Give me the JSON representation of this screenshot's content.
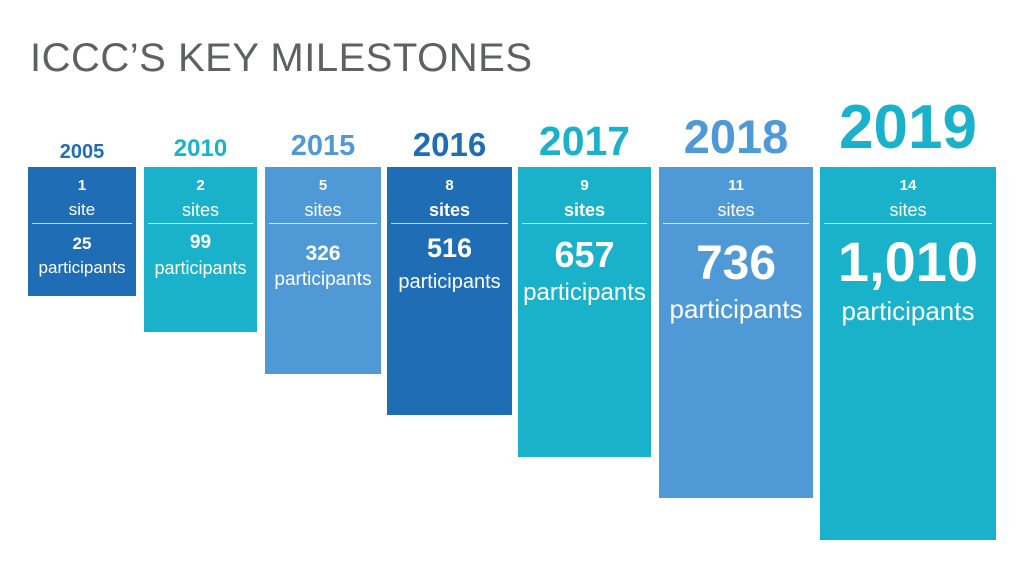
{
  "title": "ICCC’S KEY MILESTONES",
  "colors": {
    "title": "#5f6062",
    "dark_blue": "#1e6db5",
    "teal": "#1ab2cb",
    "light_blue": "#4f9ad6"
  },
  "chart_data": {
    "type": "bar",
    "title": "ICCC’S KEY MILESTONES",
    "categories": [
      "2005",
      "2010",
      "2015",
      "2016",
      "2017",
      "2018",
      "2019"
    ],
    "series": [
      {
        "values": [
          1,
          2,
          5,
          8,
          9,
          11,
          14
        ],
        "labels": [
          "1",
          "2",
          "5",
          "8",
          "9",
          "11",
          "14"
        ],
        "unit_labels": [
          "site",
          "sites",
          "sites",
          "sites",
          "sites",
          "sites",
          "sites"
        ]
      },
      {
        "values": [
          25,
          99,
          326,
          516,
          657,
          736,
          1010
        ],
        "labels": [
          "25",
          "99",
          "326",
          "516",
          "657",
          "736",
          "1,010"
        ],
        "unit_labels": [
          "participants",
          "participants",
          "participants",
          "participants",
          "participants",
          "participants",
          "participants"
        ]
      }
    ],
    "bar_colors": [
      "#1e6db5",
      "#1ab2cb",
      "#4f9ad6",
      "#1e6db5",
      "#1ab2cb",
      "#4f9ad6",
      "#1ab2cb"
    ]
  }
}
